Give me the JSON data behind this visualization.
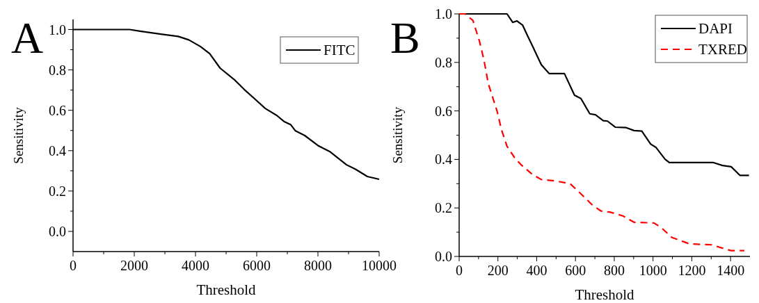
{
  "chart_data": [
    {
      "type": "line",
      "title": "A",
      "xlabel": "Threshold",
      "ylabel": "Sensitivity",
      "xlim": [
        0,
        10000
      ],
      "ylim": [
        -0.1,
        1.05
      ],
      "xticks": [
        0,
        {
          "value": 1000,
          "label": null
        },
        2000,
        {
          "value": 3000,
          "label": null
        },
        4000,
        {
          "value": 5000,
          "label": null
        },
        6000,
        {
          "value": 7000,
          "label": null
        },
        8000,
        {
          "value": 9000,
          "label": null
        },
        10000
      ],
      "yticks": [
        "0.0",
        {
          "value": 0.1,
          "label": null
        },
        {
          "value": 0.2,
          "label": "0.2"
        },
        {
          "value": 0.3,
          "label": null
        },
        {
          "value": 0.4,
          "label": "0.4"
        },
        {
          "value": 0.5,
          "label": null
        },
        {
          "value": 0.6,
          "label": "0.6"
        },
        {
          "value": 0.7,
          "label": null
        },
        {
          "value": 0.8,
          "label": "0.8"
        },
        {
          "value": 0.9,
          "label": null
        },
        {
          "value": 1.0,
          "label": "1.0"
        }
      ],
      "legend": "top right",
      "grid": false,
      "series": [
        {
          "name": "FITC",
          "color": "#000000",
          "line_style": "solid",
          "x": [
            0,
            1848,
            2189,
            2871,
            3433,
            3781,
            4159,
            4462,
            4804,
            5296,
            5600,
            5903,
            6282,
            6660,
            6888,
            7115,
            7266,
            7569,
            8024,
            8403,
            8933,
            9236,
            9615,
            10000
          ],
          "values": [
            1.0,
            1.0,
            0.992,
            0.977,
            0.966,
            0.949,
            0.916,
            0.881,
            0.809,
            0.748,
            0.702,
            0.661,
            0.609,
            0.574,
            0.545,
            0.528,
            0.498,
            0.475,
            0.423,
            0.394,
            0.33,
            0.307,
            0.272,
            0.258
          ]
        }
      ]
    },
    {
      "type": "line",
      "title": "B",
      "xlabel": "Threshold",
      "ylabel": "Sensitivity",
      "xlim": [
        0,
        1500
      ],
      "ylim": [
        0,
        1.0
      ],
      "xticks": [
        0,
        {
          "value": 100,
          "label": null
        },
        200,
        {
          "value": 300,
          "label": null
        },
        400,
        {
          "value": 500,
          "label": null
        },
        600,
        {
          "value": 700,
          "label": null
        },
        800,
        {
          "value": 900,
          "label": null
        },
        1000,
        {
          "value": 1100,
          "label": null
        },
        1200,
        {
          "value": 1300,
          "label": null
        },
        1400
      ],
      "yticks": [
        {
          "value": 0,
          "label": "0.0"
        },
        {
          "value": 0.1,
          "label": null
        },
        {
          "value": 0.2,
          "label": "0.2"
        },
        {
          "value": 0.3,
          "label": null
        },
        {
          "value": 0.4,
          "label": "0.4"
        },
        {
          "value": 0.5,
          "label": null
        },
        {
          "value": 0.6,
          "label": "0.6"
        },
        {
          "value": 0.7,
          "label": null
        },
        {
          "value": 0.8,
          "label": "0.8"
        },
        {
          "value": 0.9,
          "label": null
        },
        {
          "value": 1.0,
          "label": "1.0"
        }
      ],
      "legend": "top right",
      "grid": false,
      "series": [
        {
          "name": "DAPI",
          "color": "#000000",
          "line_style": "solid",
          "x": [
            0,
            247,
            276,
            298,
            327,
            355,
            384,
            401,
            424,
            464,
            543,
            595,
            628,
            674,
            703,
            743,
            765,
            805,
            862,
            902,
            942,
            988,
            1016,
            1062,
            1084,
            1312,
            1358,
            1403,
            1449,
            1495
          ],
          "values": [
            1.0,
            1.0,
            0.965,
            0.971,
            0.954,
            0.906,
            0.858,
            0.829,
            0.79,
            0.754,
            0.754,
            0.665,
            0.651,
            0.588,
            0.584,
            0.56,
            0.558,
            0.533,
            0.531,
            0.519,
            0.517,
            0.463,
            0.449,
            0.401,
            0.387,
            0.387,
            0.375,
            0.37,
            0.334,
            0.334
          ]
        },
        {
          "name": "TXRED",
          "color": "#ff0000",
          "line_style": "dashed",
          "x": [
            0,
            30,
            71,
            105,
            128,
            150,
            196,
            219,
            247,
            287,
            321,
            378,
            424,
            492,
            572,
            618,
            686,
            732,
            777,
            845,
            902,
            1005,
            1045,
            1096,
            1187,
            1301,
            1380,
            1402,
            1471
          ],
          "values": [
            1.0,
            1.0,
            0.973,
            0.887,
            0.81,
            0.713,
            0.598,
            0.521,
            0.454,
            0.406,
            0.377,
            0.338,
            0.317,
            0.312,
            0.3,
            0.266,
            0.213,
            0.187,
            0.183,
            0.167,
            0.141,
            0.138,
            0.117,
            0.079,
            0.052,
            0.048,
            0.029,
            0.024,
            0.024
          ]
        }
      ]
    }
  ]
}
